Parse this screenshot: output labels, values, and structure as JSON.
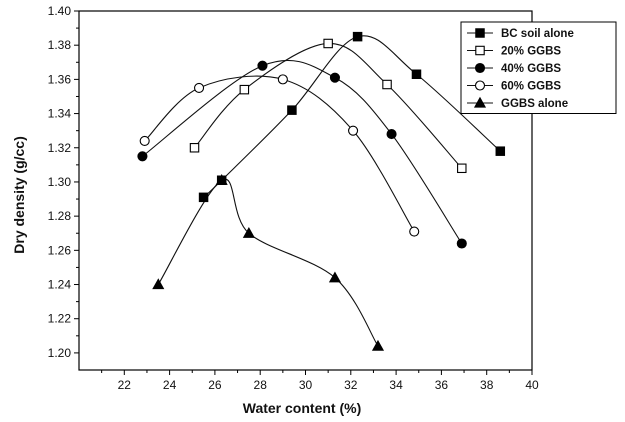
{
  "chart_data": {
    "type": "line",
    "title": "",
    "xlabel": "Water content (%)",
    "ylabel": "Dry density (g/cc)",
    "xlim": [
      20,
      40
    ],
    "ylim": [
      1.19,
      1.4
    ],
    "xticks": [
      22,
      24,
      26,
      28,
      30,
      32,
      34,
      36,
      38,
      40
    ],
    "yticks": [
      1.2,
      1.22,
      1.24,
      1.26,
      1.28,
      1.3,
      1.32,
      1.34,
      1.36,
      1.38,
      1.4
    ],
    "grid": false,
    "legend_position": "top-right",
    "series": [
      {
        "name": "BC soil alone",
        "marker": "filled-square",
        "points": [
          [
            25.5,
            1.291
          ],
          [
            26.3,
            1.301
          ],
          [
            29.4,
            1.342
          ],
          [
            32.3,
            1.385
          ],
          [
            34.9,
            1.363
          ],
          [
            38.6,
            1.318
          ]
        ]
      },
      {
        "name": "20% GGBS",
        "marker": "open-square",
        "points": [
          [
            25.1,
            1.32
          ],
          [
            27.3,
            1.354
          ],
          [
            31.0,
            1.381
          ],
          [
            33.6,
            1.357
          ],
          [
            36.9,
            1.308
          ]
        ]
      },
      {
        "name": "40% GGBS",
        "marker": "filled-circle",
        "points": [
          [
            22.8,
            1.315
          ],
          [
            28.1,
            1.368
          ],
          [
            31.3,
            1.361
          ],
          [
            33.8,
            1.328
          ],
          [
            36.9,
            1.264
          ]
        ]
      },
      {
        "name": "60% GGBS",
        "marker": "open-circle",
        "points": [
          [
            22.9,
            1.324
          ],
          [
            25.3,
            1.355
          ],
          [
            29.0,
            1.36
          ],
          [
            32.1,
            1.33
          ],
          [
            34.8,
            1.271
          ]
        ]
      },
      {
        "name": "GGBS alone",
        "marker": "filled-triangle",
        "points": [
          [
            23.5,
            1.24
          ],
          [
            26.3,
            1.301
          ],
          [
            27.5,
            1.27
          ],
          [
            31.3,
            1.244
          ],
          [
            33.2,
            1.204
          ]
        ]
      }
    ]
  }
}
